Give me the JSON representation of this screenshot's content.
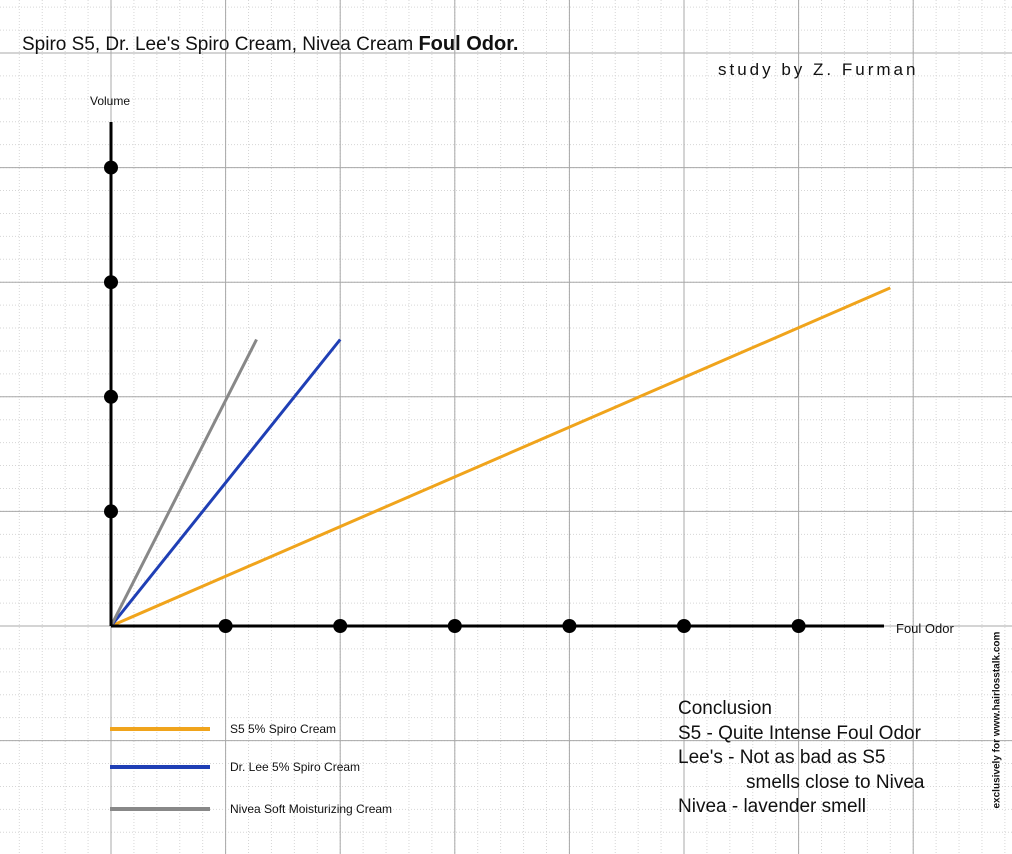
{
  "header": {
    "title_plain": "Spiro S5, Dr. Lee's Spiro Cream, Nivea Cream",
    "title_bold": "Foul Odor.",
    "subtitle": "study by Z. Furman"
  },
  "chart_data": {
    "type": "line",
    "xlabel": "Foul Odor",
    "ylabel": "Volume",
    "xlim": [
      0,
      6.8
    ],
    "ylim": [
      0,
      4.0
    ],
    "x_ticks": [
      1,
      2,
      3,
      4,
      5,
      6
    ],
    "y_ticks": [
      1,
      2,
      3,
      4
    ],
    "grid": true,
    "series": [
      {
        "name": "S5 5% Spiro Cream",
        "color": "#f0a41c",
        "points": [
          [
            0,
            0
          ],
          [
            6.8,
            2.95
          ]
        ]
      },
      {
        "name": "Dr. Lee 5% Spiro Cream",
        "color": "#1f3fb5",
        "points": [
          [
            0,
            0
          ],
          [
            2.0,
            2.5
          ]
        ]
      },
      {
        "name": "Nivea Soft Moisturizing Cream",
        "color": "#888888",
        "points": [
          [
            0,
            0
          ],
          [
            1.27,
            2.5
          ]
        ]
      }
    ]
  },
  "conclusion": {
    "heading": "Conclusion",
    "line1": "S5 - Quite Intense Foul Odor",
    "line2": "Lee's - Not as bad as S5",
    "line3": "smells close to Nivea",
    "line4": "Nivea - lavender smell"
  },
  "watermark": "exclusively for www.hairlosstalk.com"
}
